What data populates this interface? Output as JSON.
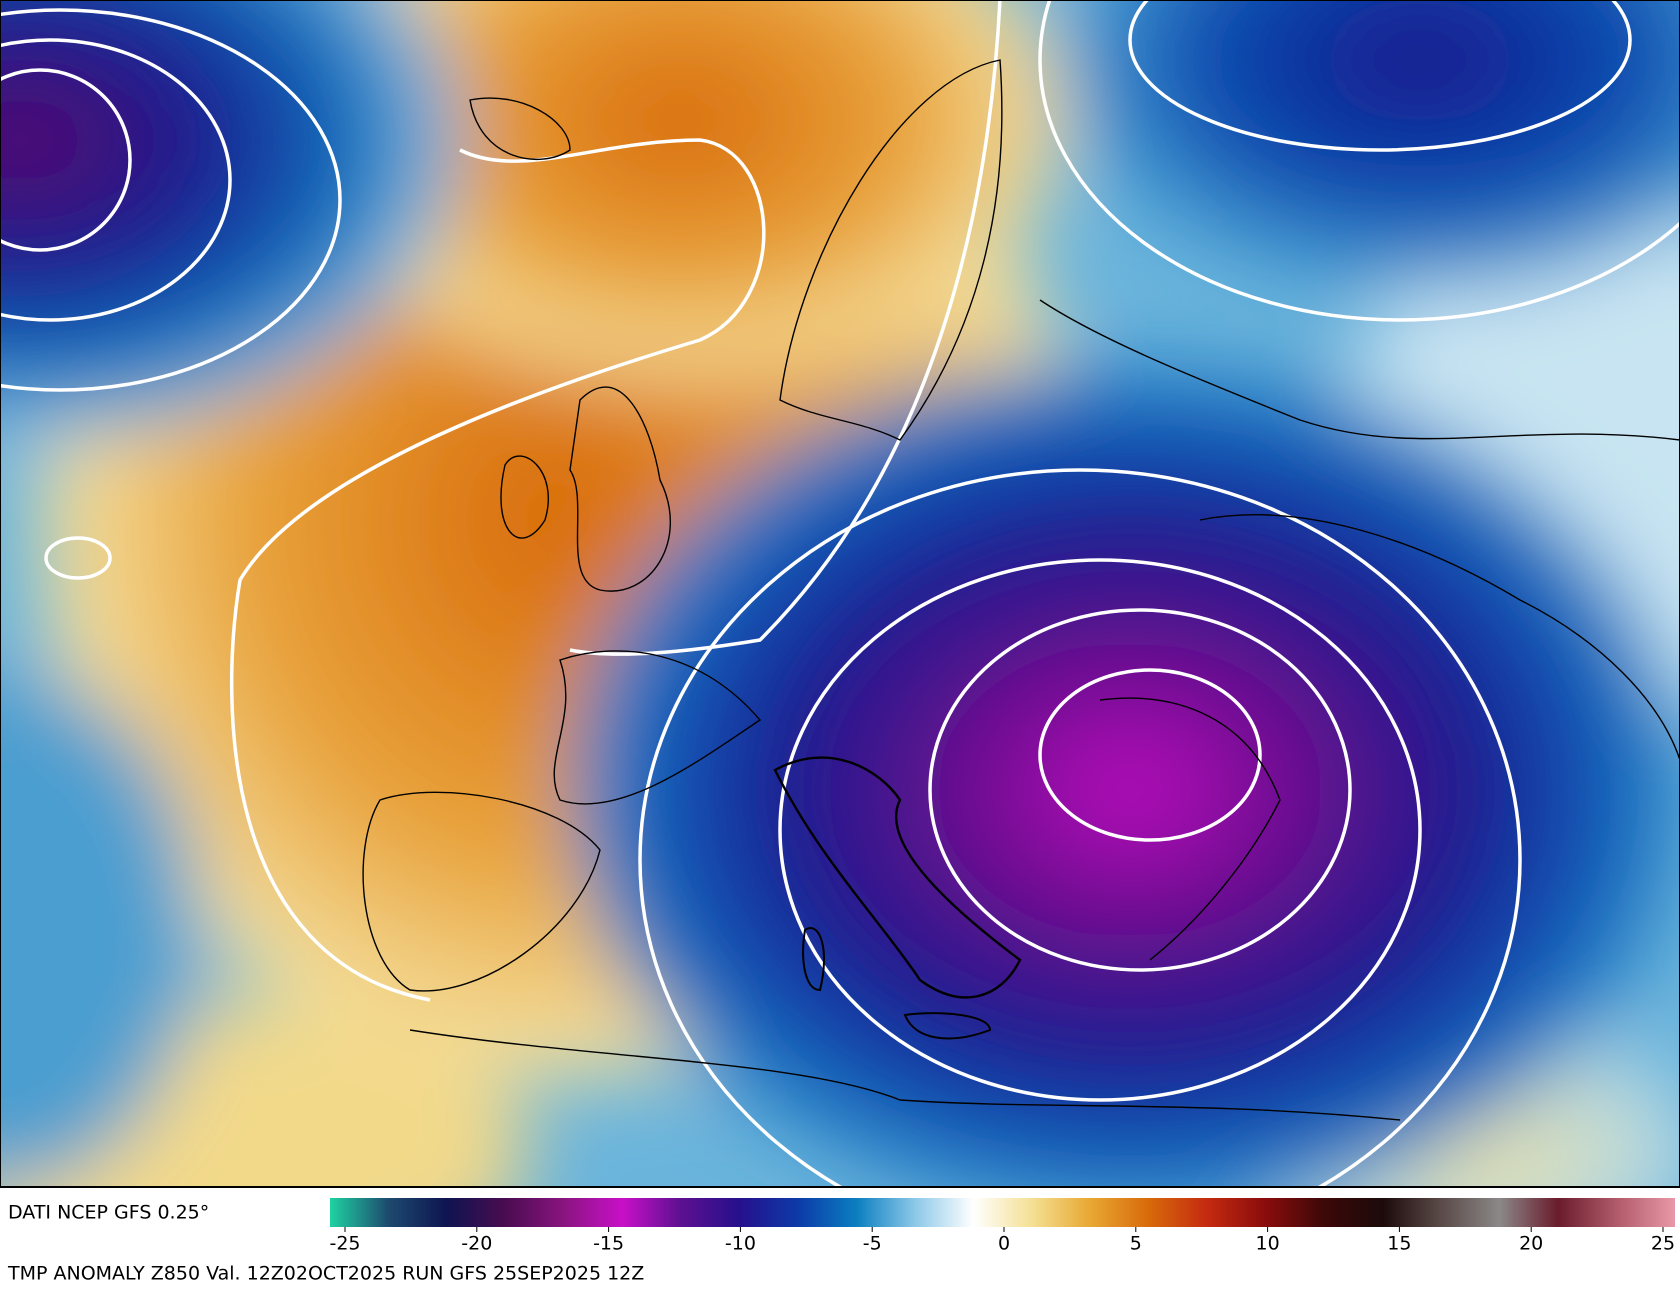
{
  "header": {
    "source": "DATI NCEP GFS 0.25°",
    "title": "TMP ANOMALY Z850 Val. 12Z02OCT2025 RUN GFS 25SEP2025 12Z"
  },
  "colorbar": {
    "min": -25,
    "max": 25,
    "ticks": [
      -25,
      -20,
      -15,
      -10,
      -5,
      0,
      5,
      10,
      15,
      20,
      25
    ],
    "colors": [
      "#1fd2a2",
      "#1d4a6e",
      "#0e1450",
      "#4a0c50",
      "#8a1480",
      "#c810c8",
      "#5c1090",
      "#26108c",
      "#0c3aa8",
      "#0b7ec0",
      "#8cc8e8",
      "#ffffff",
      "#f4e094",
      "#e8a832",
      "#d86a0a",
      "#c42a10",
      "#8a0c0c",
      "#3c0808",
      "#1c0a0a",
      "#5a4a48",
      "#8a8888",
      "#6a1c2c",
      "#b05a6a",
      "#e898a8"
    ]
  }
}
